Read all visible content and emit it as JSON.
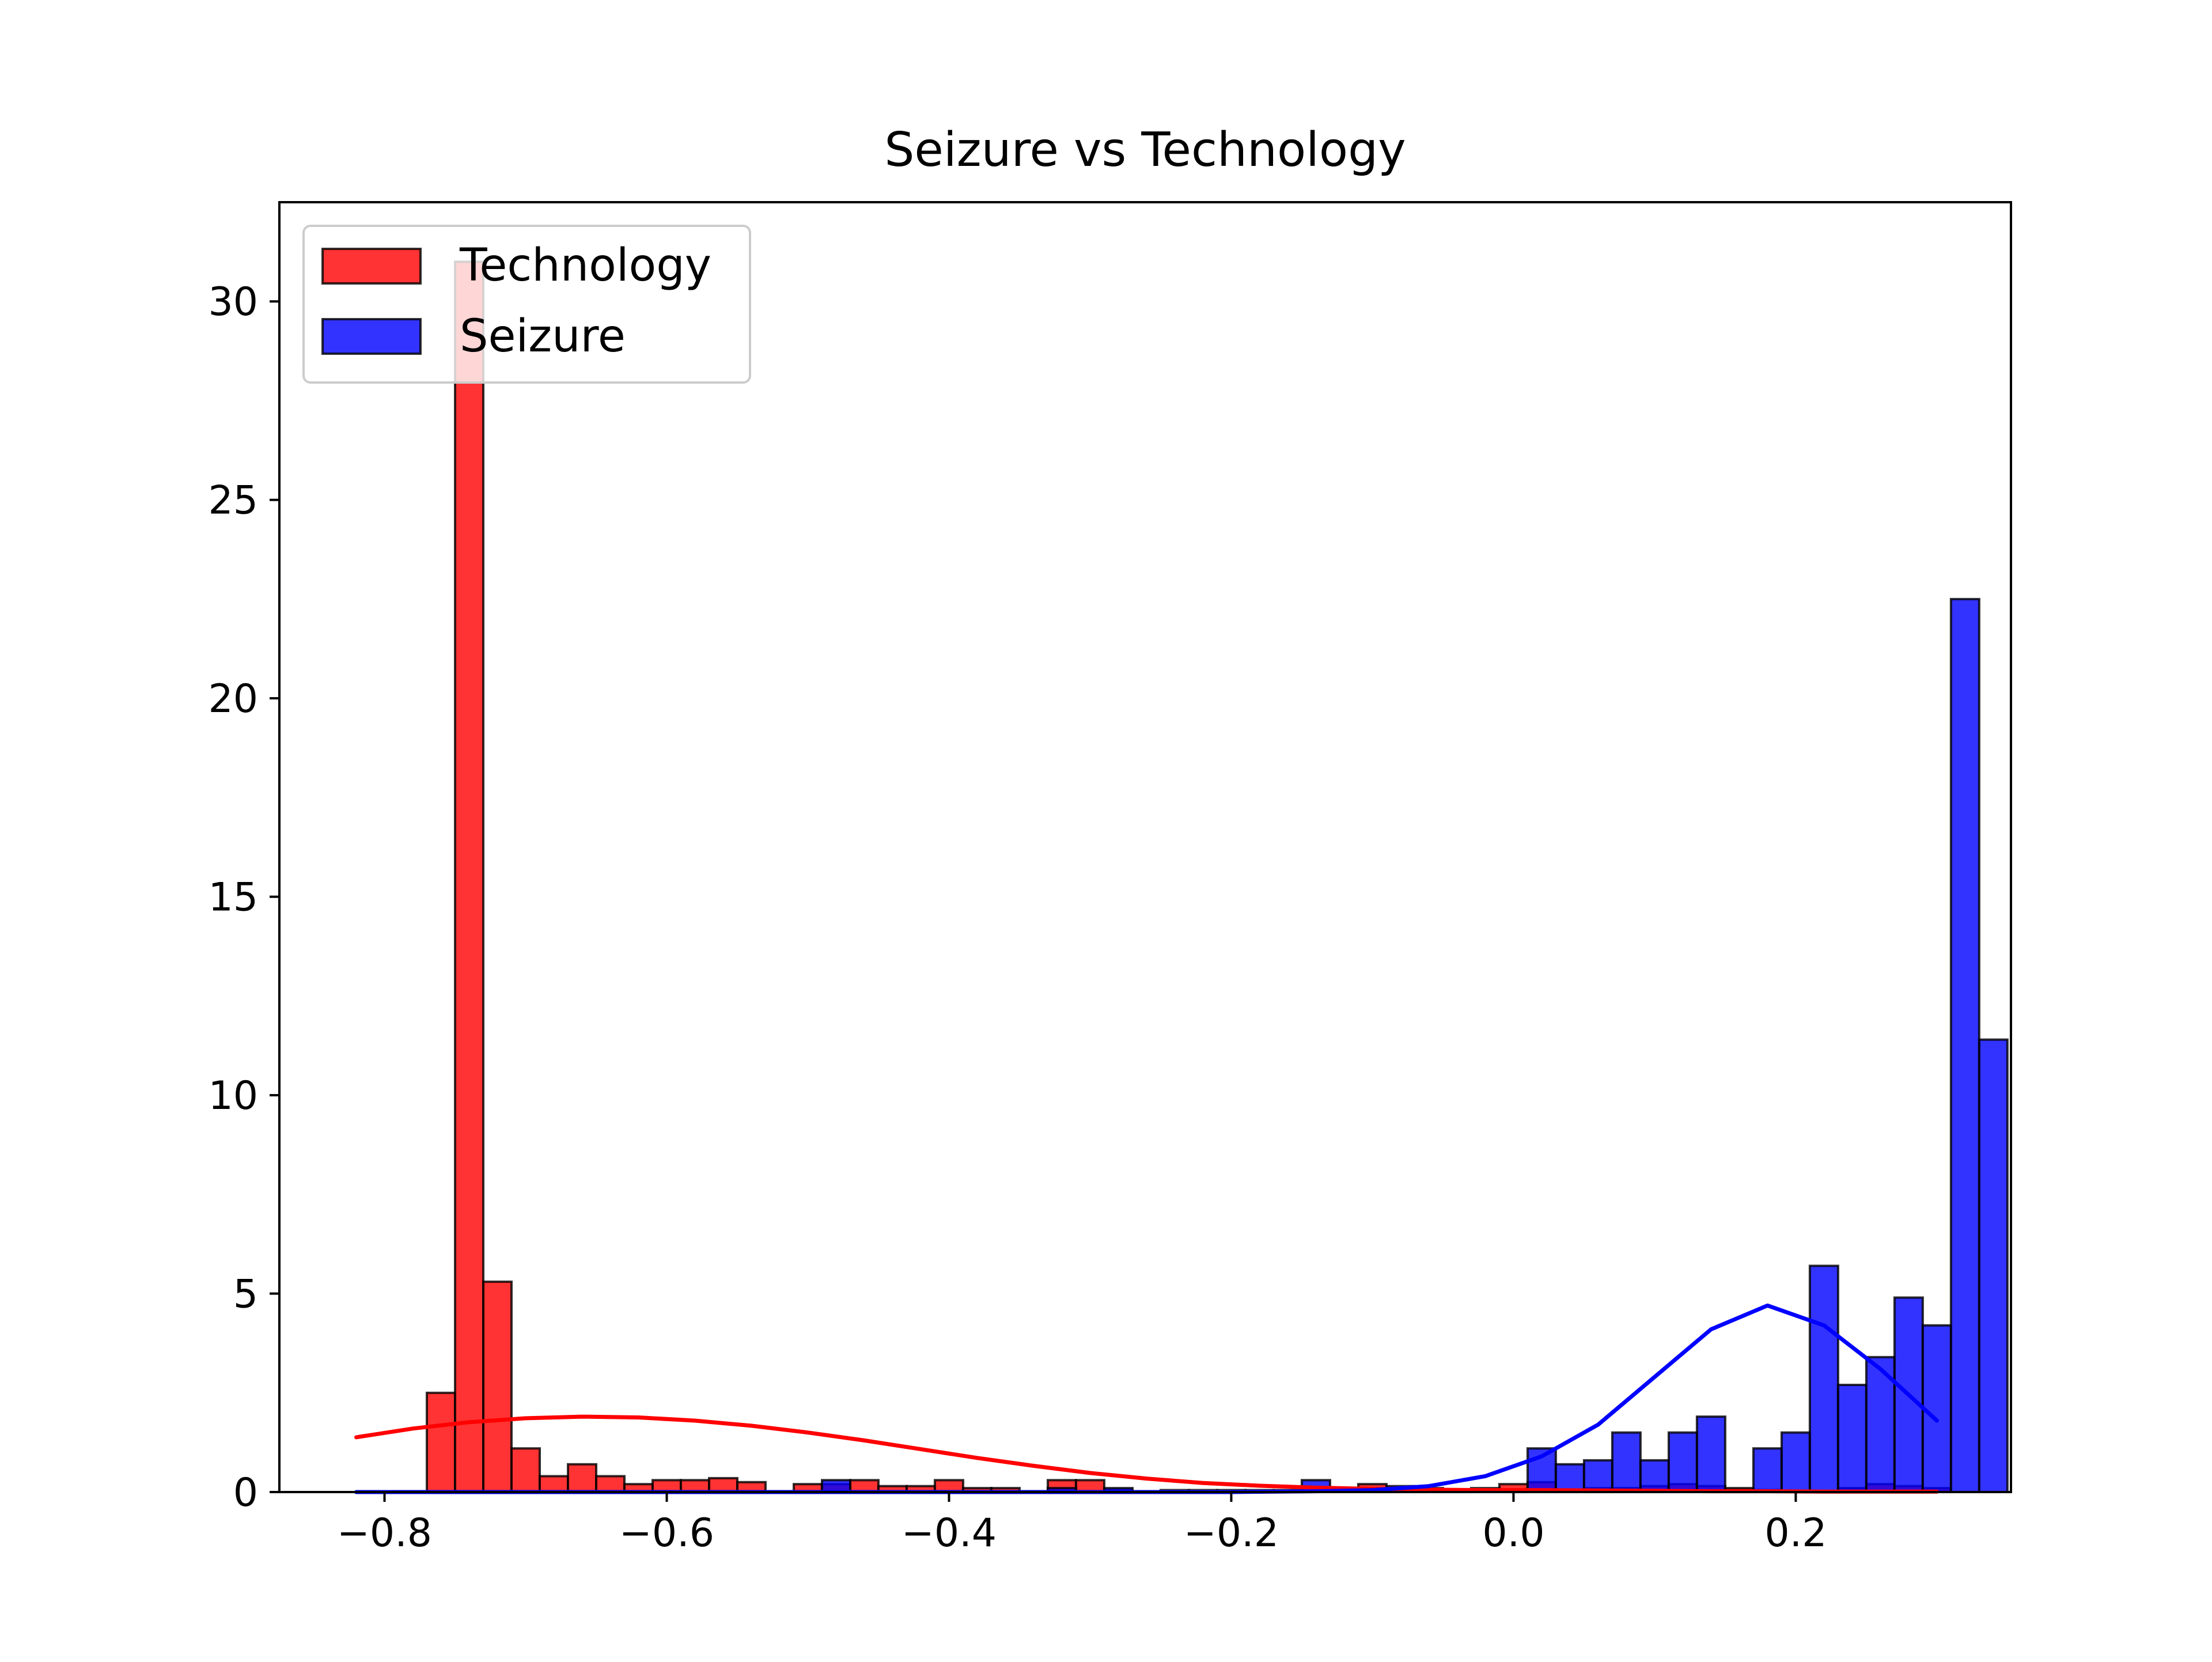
{
  "chart_data": {
    "type": "bar",
    "title": "Seizure vs Technology",
    "xlabel": "",
    "ylabel": "",
    "xlim": [
      -0.8745,
      0.3525
    ],
    "ylim": [
      0,
      32.5
    ],
    "xticks": [
      -0.8,
      -0.6,
      -0.4,
      -0.2,
      0.0,
      0.2
    ],
    "xtick_labels": [
      "−0.8",
      "−0.6",
      "−0.4",
      "−0.2",
      "0.0",
      "0.2"
    ],
    "yticks": [
      0,
      5,
      10,
      15,
      20,
      25,
      30
    ],
    "ytick_labels": [
      "0",
      "5",
      "10",
      "15",
      "20",
      "25",
      "30"
    ],
    "grid": false,
    "legend_position": "upper left",
    "bin_width": 0.02,
    "bin_edges_start": -0.77,
    "series": [
      {
        "name": "Technology",
        "color": "#ff0000",
        "bar_opacity": 0.8,
        "bin_heights": [
          2.5,
          31.0,
          5.3,
          1.1,
          0.4,
          0.7,
          0.4,
          0.2,
          0.3,
          0.3,
          0.35,
          0.25,
          0.0,
          0.2,
          0.2,
          0.3,
          0.15,
          0.15,
          0.3,
          0.1,
          0.1,
          0.0,
          0.3,
          0.3,
          0.05,
          0.0,
          0.0,
          0.05,
          0.05,
          0.05,
          0.05,
          0.05,
          0.0,
          0.2,
          0.15,
          0.0,
          0.0,
          0.0,
          0.2,
          0.25,
          0.05,
          0.1,
          0.1,
          0.15,
          0.2,
          0.15,
          0.1,
          0.05,
          0.0,
          0.0,
          0.1,
          0.2,
          0.15,
          0.1
        ],
        "kde_x": [
          -0.82,
          -0.78,
          -0.74,
          -0.7,
          -0.66,
          -0.62,
          -0.58,
          -0.54,
          -0.5,
          -0.46,
          -0.42,
          -0.38,
          -0.34,
          -0.3,
          -0.26,
          -0.22,
          -0.18,
          -0.14,
          -0.1,
          -0.06,
          -0.02,
          0.02,
          0.06,
          0.1,
          0.14,
          0.18,
          0.22,
          0.26,
          0.3
        ],
        "kde_y": [
          1.38,
          1.6,
          1.76,
          1.86,
          1.9,
          1.88,
          1.8,
          1.67,
          1.5,
          1.3,
          1.08,
          0.86,
          0.66,
          0.48,
          0.34,
          0.23,
          0.16,
          0.11,
          0.08,
          0.06,
          0.05,
          0.05,
          0.04,
          0.03,
          0.02,
          0.02,
          0.01,
          0.01,
          0.01
        ]
      },
      {
        "name": "Seizure",
        "color": "#0000ff",
        "bar_opacity": 0.8,
        "bin_heights": [
          0.0,
          0.0,
          0.0,
          0.0,
          0.0,
          0.0,
          0.0,
          0.0,
          0.0,
          0.0,
          0.0,
          0.0,
          0.0,
          0.0,
          0.3,
          0.0,
          0.0,
          0.0,
          0.0,
          0.0,
          0.0,
          0.0,
          0.1,
          0.0,
          0.1,
          0.0,
          0.05,
          0.0,
          0.0,
          0.0,
          0.0,
          0.3,
          0.0,
          0.0,
          0.0,
          0.1,
          0.0,
          0.1,
          0.0,
          1.1,
          0.7,
          0.8,
          1.5,
          0.8,
          1.5,
          1.9,
          0.0,
          1.1,
          1.5,
          5.7,
          2.7,
          3.4,
          4.9,
          4.2,
          22.5,
          11.4
        ],
        "kde_x": [
          -0.82,
          -0.7,
          -0.6,
          -0.5,
          -0.4,
          -0.3,
          -0.2,
          -0.14,
          -0.1,
          -0.06,
          -0.02,
          0.02,
          0.06,
          0.1,
          0.14,
          0.18,
          0.22,
          0.26,
          0.3
        ],
        "kde_y": [
          0.0,
          0.0,
          0.0,
          0.0,
          0.0,
          0.0,
          0.0,
          0.02,
          0.05,
          0.15,
          0.4,
          0.9,
          1.7,
          2.9,
          4.1,
          4.7,
          4.2,
          3.1,
          1.8
        ]
      }
    ]
  }
}
